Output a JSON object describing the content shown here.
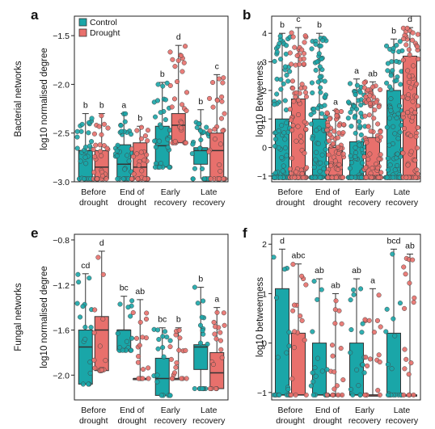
{
  "colors": {
    "control": "#1aa6a8",
    "drought": "#e8706c",
    "axis": "#222222",
    "box_stroke": "#333333"
  },
  "legend": {
    "control": "Control",
    "drought": "Drought"
  },
  "groups": [
    "Before\ndrought",
    "End of\ndrought",
    "Early\nrecovery",
    "Late\nrecovery"
  ],
  "chart_data": [
    {
      "panel": "a",
      "type": "boxplot",
      "group_label": "Bacterial networks",
      "ylabel": "log10 normalised degree",
      "ylim": [
        -3.0,
        -1.3
      ],
      "yticks": [
        -3.0,
        -2.5,
        -2.0,
        -1.5
      ],
      "ytick_labels": [
        "−3.0",
        "−2.5",
        "−2.0",
        "−1.5"
      ],
      "categories": [
        "Before drought",
        "End of drought",
        "Early recovery",
        "Late recovery"
      ],
      "legend": [
        "Control",
        "Drought"
      ],
      "series": [
        {
          "name": "Control",
          "q1": [
            -2.97,
            -2.97,
            -2.85,
            -2.82
          ],
          "median": [
            -2.68,
            -2.82,
            -2.63,
            -2.68
          ],
          "q3": [
            -2.68,
            -2.62,
            -2.43,
            -2.65
          ],
          "whisker_low": [
            -2.97,
            -2.97,
            -2.85,
            -2.97
          ],
          "whisker_high": [
            -2.3,
            -2.3,
            -1.98,
            -2.26
          ],
          "letters": [
            "b",
            "a",
            "b",
            "b"
          ]
        },
        {
          "name": "Drought",
          "q1": [
            -2.97,
            -2.97,
            -2.6,
            -2.97
          ],
          "median": [
            -2.85,
            -2.85,
            -2.42,
            -2.68
          ],
          "q3": [
            -2.68,
            -2.6,
            -2.3,
            -2.5
          ],
          "whisker_low": [
            -2.97,
            -2.97,
            -2.6,
            -2.97
          ],
          "whisker_high": [
            -2.3,
            -2.43,
            -1.6,
            -1.9
          ],
          "letters": [
            "b",
            "b",
            "d",
            "c"
          ]
        }
      ]
    },
    {
      "panel": "b",
      "type": "boxplot",
      "ylabel": "log10 Betweeness",
      "ylim": [
        -1.2,
        4.6
      ],
      "yticks": [
        -1,
        0,
        1,
        2,
        3,
        4
      ],
      "ytick_labels": [
        "−1",
        "0",
        "1",
        "2",
        "3",
        "4"
      ],
      "categories": [
        "Before drought",
        "End of drought",
        "Early recovery",
        "Late recovery"
      ],
      "series": [
        {
          "name": "Control",
          "q1": [
            -1.05,
            -1.05,
            -1.05,
            -1.05
          ],
          "median": [
            -1.05,
            -1.05,
            -1.05,
            -1.05
          ],
          "q3": [
            1.0,
            1.0,
            0.2,
            2.0
          ],
          "whisker_low": [
            -1.05,
            -1.05,
            -1.05,
            -1.05
          ],
          "whisker_high": [
            4.0,
            4.0,
            2.4,
            3.8
          ],
          "letters": [
            "b",
            "b",
            "a",
            "b"
          ]
        },
        {
          "name": "Drought",
          "q1": [
            -1.05,
            -1.05,
            -1.05,
            -1.05
          ],
          "median": [
            -1.05,
            -1.05,
            -1.05,
            -1.05
          ],
          "q3": [
            1.7,
            0.0,
            0.35,
            3.2
          ],
          "whisker_low": [
            -1.05,
            -1.05,
            -1.05,
            -1.05
          ],
          "whisker_high": [
            4.2,
            1.3,
            2.3,
            4.2
          ],
          "letters": [
            "c",
            "a",
            "ab",
            "d"
          ]
        }
      ]
    },
    {
      "panel": "e",
      "type": "boxplot",
      "group_label": "Fungal networks",
      "ylabel": "log10 normalised degree",
      "ylim": [
        -2.22,
        -0.75
      ],
      "yticks": [
        -2.0,
        -1.6,
        -1.2,
        -0.8
      ],
      "ytick_labels": [
        "−2.0",
        "−1.6",
        "−1.2",
        "−0.8"
      ],
      "categories": [
        "Before drought",
        "End of drought",
        "Early recovery",
        "Late recovery"
      ],
      "series": [
        {
          "name": "Control",
          "q1": [
            -2.08,
            -1.78,
            -2.18,
            -1.95
          ],
          "median": [
            -1.75,
            -1.6,
            -2.03,
            -1.75
          ],
          "q3": [
            -1.6,
            -1.6,
            -1.85,
            -1.73
          ],
          "whisker_low": [
            -2.08,
            -1.78,
            -2.18,
            -2.12
          ],
          "whisker_high": [
            -1.1,
            -1.3,
            -1.58,
            -1.22
          ],
          "letters": [
            "cd",
            "bc",
            "bc",
            "b"
          ]
        },
        {
          "name": "Drought",
          "q1": [
            -1.96,
            -2.03,
            -2.03,
            -2.12
          ],
          "median": [
            -1.6,
            -2.03,
            -2.03,
            -1.98
          ],
          "q3": [
            -1.48,
            -2.03,
            -2.03,
            -1.8
          ],
          "whisker_low": [
            -1.96,
            -2.03,
            -2.03,
            -2.12
          ],
          "whisker_high": [
            -0.9,
            -1.33,
            -1.58,
            -1.4
          ],
          "letters": [
            "d",
            "ab",
            "b",
            "a"
          ]
        }
      ]
    },
    {
      "panel": "f",
      "type": "boxplot",
      "ylabel": "log10 betweenness",
      "ylim": [
        -1.15,
        2.2
      ],
      "yticks": [
        -1,
        0,
        1,
        2
      ],
      "ytick_labels": [
        "−1",
        "0",
        "1",
        "2"
      ],
      "categories": [
        "Before drought",
        "End of drought",
        "Early recovery",
        "Late recovery"
      ],
      "series": [
        {
          "name": "Control",
          "q1": [
            -1.05,
            -1.05,
            -1.05,
            -1.05
          ],
          "median": [
            -1.05,
            -1.05,
            -1.05,
            -1.05
          ],
          "q3": [
            1.1,
            0.0,
            0.0,
            0.2
          ],
          "whisker_low": [
            -1.05,
            -1.05,
            -1.05,
            -1.05
          ],
          "whisker_high": [
            1.9,
            1.3,
            1.3,
            1.9
          ],
          "letters": [
            "d",
            "ab",
            "ab",
            "bcd"
          ]
        },
        {
          "name": "Drought",
          "q1": [
            -1.05,
            -1.05,
            -1.05,
            -1.05
          ],
          "median": [
            -1.05,
            -1.05,
            -1.05,
            -1.05
          ],
          "q3": [
            0.2,
            -1.05,
            -1.05,
            -1.05
          ],
          "whisker_low": [
            -1.05,
            -1.05,
            -1.05,
            -1.05
          ],
          "whisker_high": [
            1.6,
            1.0,
            1.1,
            1.8
          ],
          "letters": [
            "abc",
            "ab",
            "a",
            "ab"
          ]
        }
      ]
    }
  ]
}
